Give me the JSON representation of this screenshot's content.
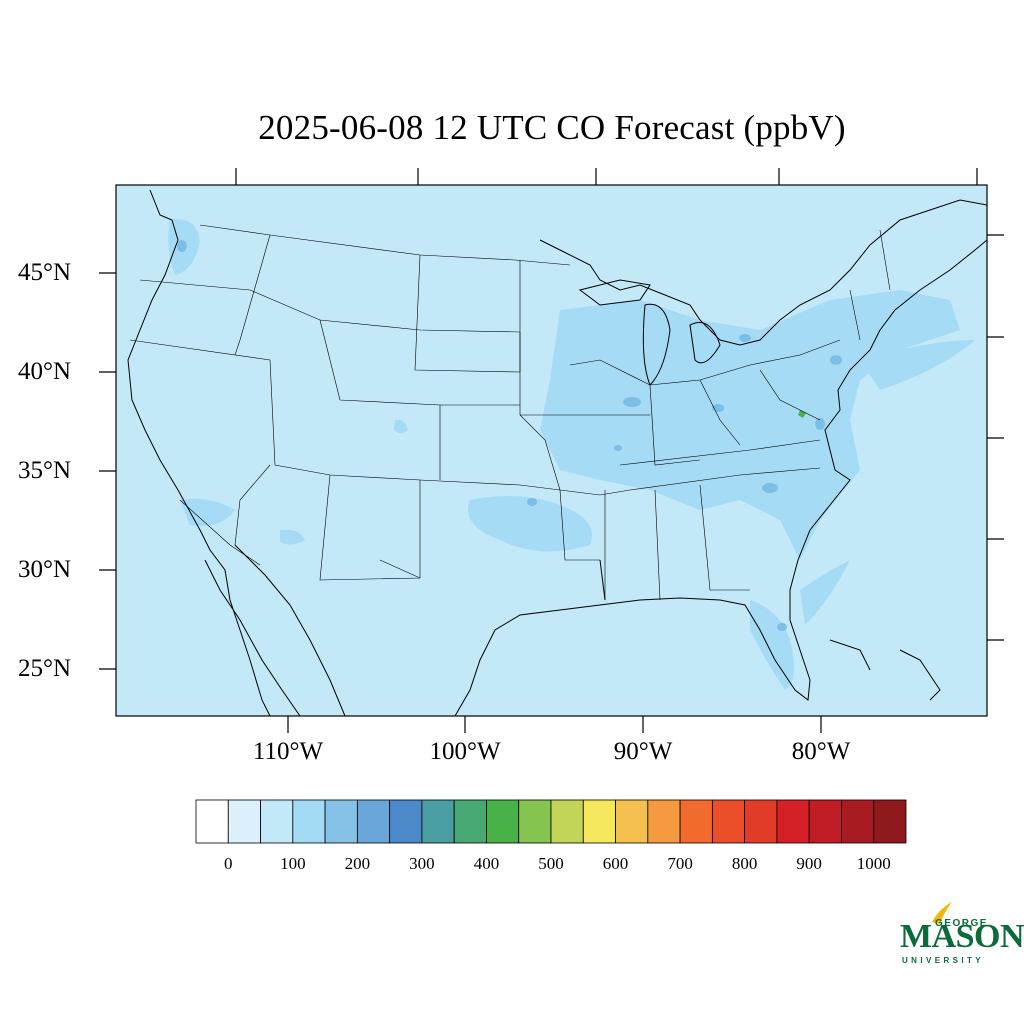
{
  "title": "2025-06-08 12 UTC CO Forecast (ppbV)",
  "map": {
    "lat_labels": [
      "45°N",
      "40°N",
      "35°N",
      "30°N",
      "25°N"
    ],
    "lon_labels": [
      "110°W",
      "100°W",
      "90°W",
      "80°W"
    ],
    "background_color": "#c3e8f8",
    "elevated_color": "#a6dbf5",
    "hotspot_color": "#7cbfe6"
  },
  "colorbar": {
    "labels": [
      "0",
      "100",
      "200",
      "300",
      "400",
      "500",
      "600",
      "700",
      "800",
      "900",
      "1000"
    ],
    "colors": [
      "#ffffff",
      "#dcf1fb",
      "#c3e8f8",
      "#a3daf4",
      "#86c1e7",
      "#6aa6da",
      "#4c89c9",
      "#4a9da0",
      "#48a873",
      "#48b248",
      "#86c450",
      "#c3d558",
      "#f6e85c",
      "#f6c050",
      "#f69a40",
      "#f26b2e",
      "#ea4f2a",
      "#e13c28",
      "#d52027",
      "#c11d25",
      "#a91b22",
      "#8f1a1e"
    ]
  },
  "logo": {
    "line1": "GEORGE",
    "line2": "MASON",
    "line3": "UNIVERSITY",
    "color": "#0b6b3a",
    "accent": "#f2b705"
  }
}
